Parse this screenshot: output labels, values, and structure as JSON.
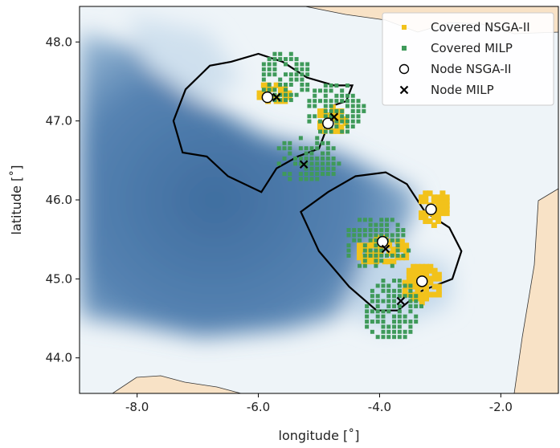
{
  "chart_data": {
    "type": "scatter",
    "xlabel": "longitude [˚]",
    "ylabel": "latitude [˚]",
    "xlim": [
      -8.95,
      -1.05
    ],
    "ylim": [
      43.55,
      48.45
    ],
    "xticks": [
      -8.0,
      -6.0,
      -4.0,
      -2.0
    ],
    "yticks": [
      44.0,
      45.0,
      46.0,
      47.0,
      48.0
    ],
    "xtick_labels": [
      "-8.0",
      "-6.0",
      "-4.0",
      "-2.0"
    ],
    "ytick_labels": [
      "44.0",
      "45.0",
      "46.0",
      "47.0",
      "48.0"
    ],
    "grid": false,
    "legend_position": "top-right",
    "colors": {
      "covered_nsga": "#f2c21b",
      "covered_milp": "#3f9a5a",
      "coast_land": "#f8e2c6",
      "deep_water": "#4a75a5",
      "shallow_water": "#e6f0f6",
      "boundary": "#000000"
    },
    "series": [
      {
        "name": "Covered NSGA-II",
        "marker": "square",
        "regions": [
          {
            "center": [
              -5.75,
              47.35
            ],
            "spread": [
              0.3,
              0.15
            ]
          },
          {
            "center": [
              -4.8,
              47.0
            ],
            "spread": [
              0.25,
              0.18
            ]
          },
          {
            "center": [
              -3.95,
              45.35
            ],
            "spread": [
              0.45,
              0.18
            ]
          },
          {
            "center": [
              -3.3,
              44.95
            ],
            "spread": [
              0.35,
              0.25
            ]
          },
          {
            "center": [
              -3.1,
              45.9
            ],
            "spread": [
              0.28,
              0.22
            ]
          }
        ]
      },
      {
        "name": "Covered MILP",
        "marker": "square",
        "regions": [
          {
            "center": [
              -5.55,
              47.55
            ],
            "spread": [
              0.45,
              0.35
            ]
          },
          {
            "center": [
              -4.75,
              47.15
            ],
            "spread": [
              0.5,
              0.35
            ]
          },
          {
            "center": [
              -5.2,
              46.5
            ],
            "spread": [
              0.55,
              0.3
            ]
          },
          {
            "center": [
              -4.05,
              45.45
            ],
            "spread": [
              0.55,
              0.35
            ]
          },
          {
            "center": [
              -3.8,
              44.6
            ],
            "spread": [
              0.5,
              0.4
            ]
          }
        ]
      },
      {
        "name": "Node NSGA-II",
        "marker": "circle",
        "points": [
          [
            -5.85,
            47.3
          ],
          [
            -4.85,
            46.97
          ],
          [
            -3.15,
            45.88
          ],
          [
            -3.95,
            45.47
          ],
          [
            -3.3,
            44.97
          ]
        ]
      },
      {
        "name": "Node MILP",
        "marker": "x",
        "points": [
          [
            -5.7,
            47.3
          ],
          [
            -4.75,
            47.05
          ],
          [
            -5.25,
            46.45
          ],
          [
            -3.9,
            45.38
          ],
          [
            -3.65,
            44.72
          ]
        ]
      }
    ],
    "boundaries": [
      [
        [
          -6.45,
          47.75
        ],
        [
          -6.0,
          47.85
        ],
        [
          -5.6,
          47.75
        ],
        [
          -5.2,
          47.55
        ],
        [
          -4.75,
          47.45
        ],
        [
          -4.45,
          47.45
        ],
        [
          -4.55,
          47.25
        ],
        [
          -4.75,
          47.2
        ],
        [
          -4.9,
          46.85
        ],
        [
          -5.0,
          46.65
        ],
        [
          -5.35,
          46.55
        ],
        [
          -5.7,
          46.4
        ],
        [
          -5.95,
          46.1
        ],
        [
          -6.5,
          46.3
        ],
        [
          -6.85,
          46.55
        ],
        [
          -7.25,
          46.6
        ],
        [
          -7.4,
          47.0
        ],
        [
          -7.2,
          47.4
        ],
        [
          -6.8,
          47.7
        ],
        [
          -6.45,
          47.75
        ]
      ],
      [
        [
          -4.4,
          46.3
        ],
        [
          -3.9,
          46.35
        ],
        [
          -3.55,
          46.2
        ],
        [
          -3.25,
          45.85
        ],
        [
          -2.85,
          45.65
        ],
        [
          -2.65,
          45.35
        ],
        [
          -2.8,
          45.0
        ],
        [
          -3.3,
          44.85
        ],
        [
          -3.7,
          44.6
        ],
        [
          -4.05,
          44.6
        ],
        [
          -4.5,
          44.9
        ],
        [
          -5.0,
          45.35
        ],
        [
          -5.15,
          45.6
        ],
        [
          -5.3,
          45.85
        ],
        [
          -4.85,
          46.1
        ],
        [
          -4.4,
          46.3
        ]
      ]
    ]
  }
}
